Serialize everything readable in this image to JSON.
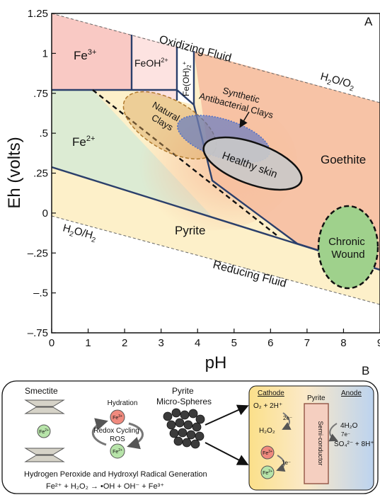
{
  "panel_a": {
    "label": "A",
    "xlabel": "pH",
    "ylabel": "Eh (volts)",
    "x_ticks": [
      "0",
      "1",
      "2",
      "3",
      "4",
      "5",
      "6",
      "7",
      "8",
      "9"
    ],
    "y_ticks": [
      "1.25",
      "1",
      "0.75",
      "0.5",
      "0.25",
      "0",
      "−0.25",
      "−0.5",
      "−0.75"
    ],
    "y_tick_text": [
      "1.25",
      "1",
      ".75",
      ".5",
      ".25",
      "0",
      "–.25",
      "–.5",
      "–.75"
    ],
    "regions": {
      "fe3": {
        "base": "Fe",
        "sup": "3+"
      },
      "feoh": {
        "base": "FeOH",
        "sup": "2+"
      },
      "feoh2": {
        "base": "Fe(OH)",
        "sub": "2",
        "sup": "+"
      },
      "fe2": {
        "base": "Fe",
        "sup": "2+"
      },
      "pyrite": "Pyrite",
      "goethite": "Goethite"
    },
    "fluids": {
      "oxidizing": "Oxidizing Fluid",
      "reducing": "Reducing Fluid",
      "h2o_o2": {
        "a": "H",
        "sub1": "2",
        "b": "O/O",
        "sub2": "2"
      },
      "h2o_h2": {
        "a": "H",
        "sub1": "2",
        "b": "O/H",
        "sub2": "2"
      }
    },
    "annotations": {
      "natural_clays": [
        "Natural",
        "Clays"
      ],
      "synthetic": [
        "Synthetic",
        "Antibacterial Clays"
      ],
      "healthy_skin": "Healthy skin",
      "chronic_wound": [
        "Chronic",
        "Wound"
      ]
    },
    "colors": {
      "fe3": "#f9c9c4",
      "feoh": "#fde3e1",
      "fe2": "#dcebd3",
      "pyrite": "#fdf0c9",
      "goethite": "#f7c3a6",
      "boundary": "#2b3f6b",
      "synthetic": "#4f6fc8",
      "natural": "#d9a35a",
      "chronic": "#9fd18c",
      "healthy": "#c9c9c9"
    }
  },
  "panel_b": {
    "label": "B",
    "smectite": "Smectite",
    "fe2_ion": {
      "base": "Fe",
      "sup": "2+"
    },
    "fe3_ion": {
      "base": "Fe",
      "sup": "3+"
    },
    "hydration": "Hydration",
    "redox": [
      "Redox Cycling",
      "ROS"
    ],
    "pyrite_title": [
      "Pyrite",
      "Micro-Spheres"
    ],
    "generation": "Hydrogen Peroxide and Hydroxyl Radical Generation",
    "equation": "Fe²⁺ + H₂O₂ → •OH + OH⁻ + Fe³⁺",
    "cell": {
      "cathode": "Cathode",
      "pyrite": "Pyrite",
      "anode": "Anode",
      "semiconductor": "Semi-conductor",
      "o2": "O₂ + 2H⁺",
      "e2": "2e⁻",
      "h2o2": "H₂O₂",
      "h2o": "4H₂O",
      "e7": "7e⁻",
      "so4": "SO₄²⁻ + 8H⁺",
      "e1": "1e⁻"
    }
  }
}
